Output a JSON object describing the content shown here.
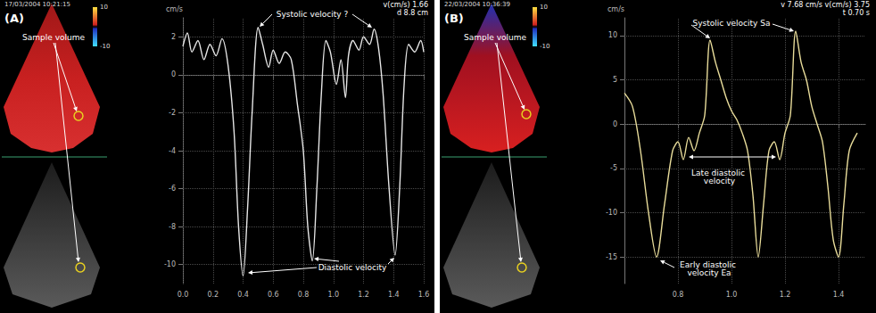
{
  "chart_data": [
    {
      "type": "line",
      "title": "(A)",
      "subtitle": "17/03/2004 10:21:15",
      "y_label": "cm/s",
      "annotations": [
        "Sample volume",
        "Systolic velocity ?",
        "Diastolic velocity",
        "v(cm/s) 1.66",
        "d 8.8 cm"
      ],
      "color": "#e6e6e6",
      "grid": true,
      "color_bar": {
        "range": [
          -10,
          10
        ],
        "ticks": [
          10,
          -10
        ]
      },
      "xlim": [
        0,
        1.6
      ],
      "xticks": [
        {
          "value": 0,
          "label": "0.0"
        },
        0.2,
        0.4,
        0.6,
        0.8,
        {
          "value": 1,
          "label": "1.0"
        },
        1.2,
        1.4,
        1.6
      ],
      "ylim": [
        -11,
        3
      ],
      "yticks": [
        2,
        0,
        -2,
        -4,
        -6,
        -8,
        -10
      ],
      "x": [
        0,
        0.03,
        0.06,
        0.1,
        0.14,
        0.18,
        0.22,
        0.26,
        0.3,
        0.34,
        0.37,
        0.4,
        0.43,
        0.46,
        0.5,
        0.53,
        0.57,
        0.6,
        0.64,
        0.68,
        0.72,
        0.76,
        0.8,
        0.83,
        0.86,
        0.89,
        0.92,
        0.95,
        0.98,
        1.02,
        1.05,
        1.08,
        1.1,
        1.13,
        1.17,
        1.2,
        1.24,
        1.27,
        1.3,
        1.33,
        1.37,
        1.41,
        1.44,
        1.47,
        1.5,
        1.54,
        1.58,
        1.6
      ],
      "values": [
        1.5,
        2.2,
        1.2,
        1.8,
        0.8,
        1.6,
        1,
        1.9,
        0.5,
        -3,
        -8,
        -10.6,
        -7,
        -2,
        2.5,
        1.6,
        0.4,
        1.3,
        0.6,
        1.2,
        0.8,
        -1.5,
        -4,
        -8,
        -9.8,
        -6,
        -1,
        1.8,
        1.2,
        -0.5,
        0.8,
        -1.2,
        1,
        1.8,
        1.3,
        2,
        1.6,
        2.4,
        1.4,
        -1,
        -6,
        -9.5,
        -6,
        -0.5,
        1.6,
        1.2,
        1.8,
        1.2
      ]
    },
    {
      "type": "line",
      "title": "(B)",
      "subtitle": "22/03/2004 10:36:39",
      "y_label": "cm/s",
      "annotations": [
        "Sample volume",
        "Systolic velocity Sa",
        "Late diastolic velocity",
        "Early diastolic velocity Ea",
        "v(cm/s) 3.75",
        "v 7.68 cm/s",
        "t 0.70 s"
      ],
      "color": "#e8dc9a",
      "grid": true,
      "color_bar": {
        "range": [
          -10,
          10
        ],
        "ticks": [
          10,
          -10
        ]
      },
      "xlim": [
        0.6,
        1.5
      ],
      "xticks": [
        0.8,
        {
          "value": 1,
          "label": "1.0"
        },
        1.2,
        1.4
      ],
      "ylim": [
        -18,
        12
      ],
      "yticks": [
        10,
        5,
        0,
        -5,
        -10,
        -15
      ],
      "x": [
        0.6,
        0.63,
        0.66,
        0.69,
        0.72,
        0.75,
        0.78,
        0.8,
        0.82,
        0.84,
        0.86,
        0.88,
        0.9,
        0.92,
        0.94,
        0.96,
        0.98,
        1,
        1.02,
        1.04,
        1.06,
        1.08,
        1.1,
        1.12,
        1.14,
        1.16,
        1.18,
        1.2,
        1.22,
        1.24,
        1.26,
        1.28,
        1.3,
        1.32,
        1.34,
        1.36,
        1.38,
        1.4,
        1.42,
        1.44,
        1.47
      ],
      "values": [
        3.5,
        2,
        -3,
        -10,
        -15,
        -9,
        -3,
        -2,
        -4,
        -1.5,
        -3,
        -1,
        1,
        9.5,
        7,
        5,
        3,
        1.5,
        0.5,
        -1,
        -3,
        -8,
        -15,
        -9,
        -3,
        -2,
        -4,
        -1,
        1,
        10.5,
        7,
        5,
        2,
        0,
        -2,
        -7,
        -13,
        -15,
        -9,
        -3,
        -1
      ]
    }
  ]
}
